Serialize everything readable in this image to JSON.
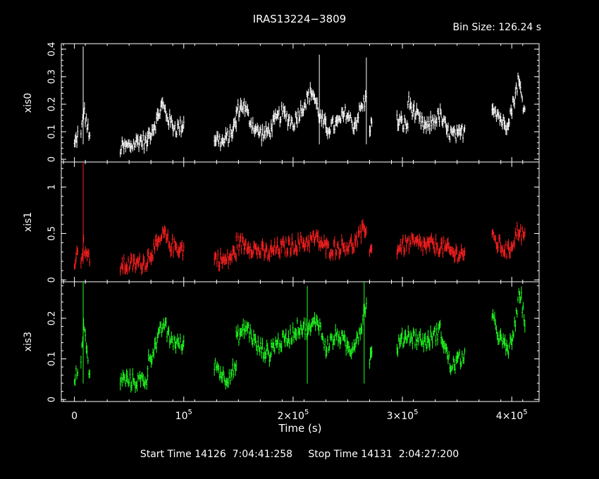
{
  "chart_data": {
    "type": "line",
    "title": "IRAS13224−3809",
    "bin_size_label": "Bin Size: 126.24 s",
    "xlabel": "Time (s)",
    "x_ticks": [
      {
        "value": 0,
        "label": "0"
      },
      {
        "value": 100000,
        "label": "10",
        "sup": "5"
      },
      {
        "value": 200000,
        "label": "2×10",
        "sup": "5"
      },
      {
        "value": 300000,
        "label": "3×10",
        "sup": "5"
      },
      {
        "value": 400000,
        "label": "4×10",
        "sup": "5"
      }
    ],
    "xlim": [
      -12000,
      425000
    ],
    "panels": [
      {
        "name": "xis0",
        "color": "#ffffff",
        "ylim": [
          -0.01,
          0.42
        ],
        "y_ticks": [
          0,
          0.1,
          0.2,
          0.3,
          0.4
        ],
        "y_tick_labels": [
          "0",
          "0.1",
          "0.2",
          "0.3",
          "0.4"
        ],
        "segments": [
          {
            "start": 0,
            "end": 3000,
            "shape": [
              [
                0,
                0.05
              ],
              [
                1,
                0.09
              ]
            ]
          },
          {
            "start": 6000,
            "end": 14000,
            "shape": [
              [
                0,
                0.08
              ],
              [
                0.3,
                0.18
              ],
              [
                0.6,
                0.14
              ],
              [
                1,
                0.07
              ]
            ]
          },
          {
            "start": 42000,
            "end": 67000,
            "shape": [
              [
                0,
                0.04
              ],
              [
                0.4,
                0.05
              ],
              [
                0.7,
                0.07
              ],
              [
                1,
                0.06
              ]
            ]
          },
          {
            "start": 67000,
            "end": 100000,
            "shape": [
              [
                0,
                0.08
              ],
              [
                0.25,
                0.14
              ],
              [
                0.4,
                0.2
              ],
              [
                0.6,
                0.14
              ],
              [
                0.8,
                0.11
              ],
              [
                1,
                0.13
              ]
            ]
          },
          {
            "start": 128000,
            "end": 148000,
            "shape": [
              [
                0,
                0.08
              ],
              [
                0.4,
                0.06
              ],
              [
                0.7,
                0.09
              ],
              [
                1,
                0.13
              ]
            ]
          },
          {
            "start": 148000,
            "end": 180000,
            "shape": [
              [
                0,
                0.17
              ],
              [
                0.2,
                0.2
              ],
              [
                0.4,
                0.14
              ],
              [
                0.6,
                0.1
              ],
              [
                0.8,
                0.09
              ],
              [
                1,
                0.11
              ]
            ]
          },
          {
            "start": 180000,
            "end": 230000,
            "shape": [
              [
                0,
                0.12
              ],
              [
                0.2,
                0.17
              ],
              [
                0.4,
                0.13
              ],
              [
                0.6,
                0.2
              ],
              [
                0.75,
                0.25
              ],
              [
                0.9,
                0.15
              ],
              [
                1,
                0.12
              ]
            ]
          },
          {
            "start": 230000,
            "end": 267000,
            "shape": [
              [
                0,
                0.11
              ],
              [
                0.3,
                0.13
              ],
              [
                0.5,
                0.17
              ],
              [
                0.7,
                0.12
              ],
              [
                0.85,
                0.18
              ],
              [
                1,
                0.22
              ]
            ]
          },
          {
            "start": 270000,
            "end": 272000,
            "shape": [
              [
                0,
                0.12
              ],
              [
                1,
                0.13
              ]
            ]
          },
          {
            "start": 295000,
            "end": 305000,
            "shape": [
              [
                0,
                0.14
              ],
              [
                1,
                0.12
              ]
            ]
          },
          {
            "start": 305000,
            "end": 325000,
            "shape": [
              [
                0,
                0.21
              ],
              [
                0.3,
                0.17
              ],
              [
                0.6,
                0.13
              ],
              [
                1,
                0.11
              ]
            ]
          },
          {
            "start": 325000,
            "end": 357000,
            "shape": [
              [
                0,
                0.13
              ],
              [
                0.3,
                0.16
              ],
              [
                0.5,
                0.1
              ],
              [
                0.8,
                0.08
              ],
              [
                1,
                0.11
              ]
            ]
          },
          {
            "start": 382000,
            "end": 412000,
            "shape": [
              [
                0,
                0.2
              ],
              [
                0.2,
                0.16
              ],
              [
                0.4,
                0.12
              ],
              [
                0.6,
                0.18
              ],
              [
                0.8,
                0.29
              ],
              [
                1,
                0.17
              ]
            ]
          }
        ],
        "spikes": [
          {
            "x": 8000,
            "y": 0.41
          },
          {
            "x": 224000,
            "y": 0.38
          },
          {
            "x": 267000,
            "y": 0.37
          }
        ]
      },
      {
        "name": "xis1",
        "color": "#ff2020",
        "ylim": [
          -0.02,
          1.27
        ],
        "y_ticks": [
          0,
          0.5,
          1
        ],
        "y_tick_labels": [
          "0",
          "0.5",
          "1"
        ],
        "segments": [
          {
            "start": 0,
            "end": 3000,
            "shape": [
              [
                0,
                0.22
              ],
              [
                1,
                0.28
              ]
            ]
          },
          {
            "start": 6000,
            "end": 14000,
            "shape": [
              [
                0,
                0.25
              ],
              [
                0.3,
                0.38
              ],
              [
                0.6,
                0.3
              ],
              [
                1,
                0.18
              ]
            ]
          },
          {
            "start": 42000,
            "end": 67000,
            "shape": [
              [
                0,
                0.15
              ],
              [
                0.5,
                0.17
              ],
              [
                1,
                0.2
              ]
            ]
          },
          {
            "start": 67000,
            "end": 100000,
            "shape": [
              [
                0,
                0.25
              ],
              [
                0.3,
                0.38
              ],
              [
                0.45,
                0.5
              ],
              [
                0.6,
                0.38
              ],
              [
                1,
                0.33
              ]
            ]
          },
          {
            "start": 128000,
            "end": 148000,
            "shape": [
              [
                0,
                0.24
              ],
              [
                0.5,
                0.2
              ],
              [
                1,
                0.3
              ]
            ]
          },
          {
            "start": 148000,
            "end": 180000,
            "shape": [
              [
                0,
                0.4
              ],
              [
                0.3,
                0.38
              ],
              [
                0.6,
                0.32
              ],
              [
                1,
                0.28
              ]
            ]
          },
          {
            "start": 180000,
            "end": 230000,
            "shape": [
              [
                0,
                0.32
              ],
              [
                0.3,
                0.36
              ],
              [
                0.6,
                0.4
              ],
              [
                0.8,
                0.45
              ],
              [
                1,
                0.35
              ]
            ]
          },
          {
            "start": 230000,
            "end": 267000,
            "shape": [
              [
                0,
                0.33
              ],
              [
                0.4,
                0.36
              ],
              [
                0.7,
                0.38
              ],
              [
                1,
                0.58
              ]
            ]
          },
          {
            "start": 270000,
            "end": 272000,
            "shape": [
              [
                0,
                0.3
              ],
              [
                1,
                0.32
              ]
            ]
          },
          {
            "start": 295000,
            "end": 325000,
            "shape": [
              [
                0,
                0.34
              ],
              [
                0.4,
                0.4
              ],
              [
                1,
                0.36
              ]
            ]
          },
          {
            "start": 325000,
            "end": 357000,
            "shape": [
              [
                0,
                0.38
              ],
              [
                0.4,
                0.35
              ],
              [
                0.7,
                0.28
              ],
              [
                1,
                0.3
              ]
            ]
          },
          {
            "start": 382000,
            "end": 412000,
            "shape": [
              [
                0,
                0.45
              ],
              [
                0.3,
                0.35
              ],
              [
                0.5,
                0.3
              ],
              [
                0.8,
                0.55
              ],
              [
                1,
                0.45
              ]
            ]
          }
        ],
        "spikes": [
          {
            "x": 8000,
            "y": 1.27
          }
        ]
      },
      {
        "name": "xis3",
        "color": "#20ff20",
        "ylim": [
          -0.005,
          0.29
        ],
        "y_ticks": [
          0,
          0.1,
          0.2
        ],
        "y_tick_labels": [
          "0",
          "0.1",
          "0.2"
        ],
        "segments": [
          {
            "start": 0,
            "end": 3000,
            "shape": [
              [
                0,
                0.04
              ],
              [
                1,
                0.08
              ]
            ]
          },
          {
            "start": 6000,
            "end": 14000,
            "shape": [
              [
                0,
                0.1
              ],
              [
                0.3,
                0.18
              ],
              [
                0.6,
                0.13
              ],
              [
                1,
                0.05
              ]
            ]
          },
          {
            "start": 42000,
            "end": 67000,
            "shape": [
              [
                0,
                0.05
              ],
              [
                0.5,
                0.045
              ],
              [
                1,
                0.05
              ]
            ]
          },
          {
            "start": 67000,
            "end": 100000,
            "shape": [
              [
                0,
                0.09
              ],
              [
                0.3,
                0.15
              ],
              [
                0.45,
                0.19
              ],
              [
                0.6,
                0.15
              ],
              [
                1,
                0.13
              ]
            ]
          },
          {
            "start": 128000,
            "end": 148000,
            "shape": [
              [
                0,
                0.09
              ],
              [
                0.5,
                0.05
              ],
              [
                1,
                0.08
              ]
            ]
          },
          {
            "start": 148000,
            "end": 180000,
            "shape": [
              [
                0,
                0.15
              ],
              [
                0.3,
                0.18
              ],
              [
                0.6,
                0.13
              ],
              [
                1,
                0.11
              ]
            ]
          },
          {
            "start": 180000,
            "end": 230000,
            "shape": [
              [
                0,
                0.13
              ],
              [
                0.3,
                0.15
              ],
              [
                0.5,
                0.18
              ],
              [
                0.7,
                0.17
              ],
              [
                0.85,
                0.2
              ],
              [
                1,
                0.12
              ]
            ]
          },
          {
            "start": 230000,
            "end": 267000,
            "shape": [
              [
                0,
                0.13
              ],
              [
                0.3,
                0.16
              ],
              [
                0.6,
                0.12
              ],
              [
                0.85,
                0.17
              ],
              [
                1,
                0.24
              ]
            ]
          },
          {
            "start": 270000,
            "end": 272000,
            "shape": [
              [
                0,
                0.1
              ],
              [
                1,
                0.11
              ]
            ]
          },
          {
            "start": 295000,
            "end": 325000,
            "shape": [
              [
                0,
                0.13
              ],
              [
                0.3,
                0.16
              ],
              [
                0.6,
                0.15
              ],
              [
                1,
                0.14
              ]
            ]
          },
          {
            "start": 325000,
            "end": 357000,
            "shape": [
              [
                0,
                0.15
              ],
              [
                0.3,
                0.17
              ],
              [
                0.6,
                0.08
              ],
              [
                1,
                0.11
              ]
            ]
          },
          {
            "start": 382000,
            "end": 412000,
            "shape": [
              [
                0,
                0.2
              ],
              [
                0.3,
                0.14
              ],
              [
                0.5,
                0.12
              ],
              [
                0.7,
                0.18
              ],
              [
                0.85,
                0.27
              ],
              [
                1,
                0.19
              ]
            ]
          }
        ],
        "spikes": [
          {
            "x": 8000,
            "y": 0.29
          },
          {
            "x": 213000,
            "y": 0.28
          },
          {
            "x": 265000,
            "y": 0.29
          }
        ]
      }
    ],
    "start_time_label": "Start Time 14126  7:04:41:258",
    "stop_time_label": "Stop Time 14131  2:04:27:200"
  }
}
